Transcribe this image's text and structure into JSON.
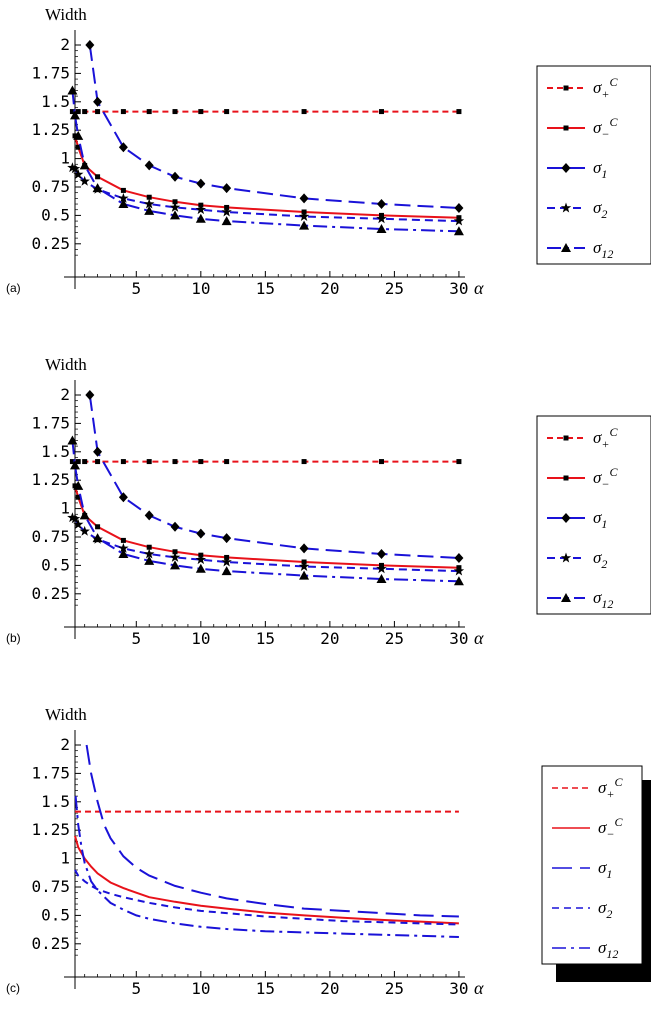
{
  "chart_data": [
    {
      "panel_label": "(a)",
      "type": "line",
      "ylabel": "Width",
      "xlabel": "α",
      "xlim": [
        0,
        30
      ],
      "ylim": [
        0.1,
        2.0
      ],
      "xticks": [
        "5",
        "10",
        "15",
        "20",
        "25",
        "30"
      ],
      "yticks": [
        "2",
        "1.75",
        "1.5",
        "1.25",
        "1",
        "0.75",
        "0.5",
        "0.25"
      ],
      "legend_position": "right",
      "markers": true,
      "series": [
        {
          "label": "σ+^C",
          "color": "#e8121a",
          "dash": "6,4",
          "marker": "square",
          "x": [
            0.05,
            0.5,
            1,
            2,
            4,
            6,
            8,
            10,
            12,
            18,
            24,
            30
          ],
          "y": [
            1.414,
            1.414,
            1.414,
            1.414,
            1.414,
            1.414,
            1.414,
            1.414,
            1.414,
            1.414,
            1.414,
            1.414
          ]
        },
        {
          "label": "σ−^C",
          "color": "#e8121a",
          "dash": "",
          "marker": "square",
          "x": [
            0.25,
            0.5,
            1,
            2,
            4,
            6,
            8,
            10,
            12,
            18,
            24,
            30
          ],
          "y": [
            1.2,
            1.1,
            0.94,
            0.84,
            0.72,
            0.66,
            0.62,
            0.59,
            0.57,
            0.53,
            0.5,
            0.48
          ]
        },
        {
          "label": "σ1",
          "color": "#1a12d8",
          "dash": "16,7",
          "marker": "diamond",
          "x": [
            1.4,
            2,
            4,
            6,
            8,
            10,
            12,
            18,
            24,
            30
          ],
          "y": [
            2.0,
            1.5,
            1.1,
            0.94,
            0.84,
            0.78,
            0.74,
            0.65,
            0.6,
            0.565
          ]
        },
        {
          "label": "σ2",
          "color": "#1a12d8",
          "dash": "8,5",
          "marker": "star",
          "x": [
            0.05,
            0.25,
            0.5,
            1,
            2,
            4,
            6,
            8,
            10,
            12,
            18,
            24,
            30
          ],
          "y": [
            0.92,
            0.91,
            0.86,
            0.8,
            0.73,
            0.65,
            0.6,
            0.57,
            0.55,
            0.53,
            0.49,
            0.47,
            0.45
          ]
        },
        {
          "label": "σ12",
          "color": "#1a12d8",
          "dash": "14,5,3,5",
          "marker": "triangle",
          "x": [
            0.05,
            0.25,
            0.5,
            1,
            2,
            4,
            6,
            8,
            10,
            12,
            18,
            24,
            30
          ],
          "y": [
            1.6,
            1.38,
            1.2,
            0.94,
            0.74,
            0.6,
            0.54,
            0.5,
            0.47,
            0.45,
            0.41,
            0.38,
            0.36
          ]
        }
      ]
    },
    {
      "panel_label": "(b)",
      "type": "line",
      "ylabel": "Width",
      "xlabel": "α",
      "xlim": [
        0,
        30
      ],
      "ylim": [
        0.1,
        2.0
      ],
      "xticks": [
        "5",
        "10",
        "15",
        "20",
        "25",
        "30"
      ],
      "yticks": [
        "2",
        "1.75",
        "1.5",
        "1.25",
        "1",
        "0.75",
        "0.5",
        "0.25"
      ],
      "legend_position": "right",
      "markers": true,
      "series": [
        {
          "label": "σ+^C",
          "color": "#e8121a",
          "dash": "6,4",
          "marker": "square",
          "x": [
            0.05,
            0.5,
            1,
            2,
            4,
            6,
            8,
            10,
            12,
            18,
            24,
            30
          ],
          "y": [
            1.414,
            1.414,
            1.414,
            1.414,
            1.414,
            1.414,
            1.414,
            1.414,
            1.414,
            1.414,
            1.414,
            1.414
          ]
        },
        {
          "label": "σ−^C",
          "color": "#e8121a",
          "dash": "",
          "marker": "square",
          "x": [
            0.25,
            0.5,
            1,
            2,
            4,
            6,
            8,
            10,
            12,
            18,
            24,
            30
          ],
          "y": [
            1.2,
            1.1,
            0.94,
            0.84,
            0.72,
            0.66,
            0.62,
            0.59,
            0.57,
            0.53,
            0.5,
            0.48
          ]
        },
        {
          "label": "σ1",
          "color": "#1a12d8",
          "dash": "16,7",
          "marker": "diamond",
          "x": [
            1.4,
            2,
            4,
            6,
            8,
            10,
            12,
            18,
            24,
            30
          ],
          "y": [
            2.0,
            1.5,
            1.1,
            0.94,
            0.84,
            0.78,
            0.74,
            0.65,
            0.6,
            0.565
          ]
        },
        {
          "label": "σ2",
          "color": "#1a12d8",
          "dash": "8,5",
          "marker": "star",
          "x": [
            0.05,
            0.25,
            0.5,
            1,
            2,
            4,
            6,
            8,
            10,
            12,
            18,
            24,
            30
          ],
          "y": [
            0.92,
            0.91,
            0.86,
            0.8,
            0.73,
            0.65,
            0.6,
            0.57,
            0.55,
            0.53,
            0.49,
            0.47,
            0.45
          ]
        },
        {
          "label": "σ12",
          "color": "#1a12d8",
          "dash": "14,5,3,5",
          "marker": "triangle",
          "x": [
            0.05,
            0.25,
            0.5,
            1,
            2,
            4,
            6,
            8,
            10,
            12,
            18,
            24,
            30
          ],
          "y": [
            1.6,
            1.38,
            1.2,
            0.94,
            0.74,
            0.6,
            0.54,
            0.5,
            0.47,
            0.45,
            0.41,
            0.38,
            0.36
          ]
        }
      ]
    },
    {
      "panel_label": "(c)",
      "type": "line",
      "ylabel": "Width",
      "xlabel": "α",
      "xlim": [
        0,
        30
      ],
      "ylim": [
        0.1,
        2.0
      ],
      "xticks": [
        "5",
        "10",
        "15",
        "20",
        "25",
        "30"
      ],
      "yticks": [
        "2",
        "1.75",
        "1.5",
        "1.25",
        "1",
        "0.75",
        "0.5",
        "0.25"
      ],
      "legend_position": "right",
      "markers": false,
      "series": [
        {
          "label": "σ+^C",
          "color": "#e8121a",
          "dash": "6,4",
          "x": [
            0.25,
            30
          ],
          "y": [
            1.414,
            1.414
          ]
        },
        {
          "label": "σ−^C",
          "color": "#e8121a",
          "dash": "",
          "x": [
            0.25,
            0.5,
            1,
            1.5,
            2,
            3,
            4,
            5,
            6,
            8,
            10,
            12,
            15,
            18,
            21,
            24,
            27,
            30
          ],
          "y": [
            1.2,
            1.1,
            1.0,
            0.93,
            0.87,
            0.79,
            0.74,
            0.7,
            0.66,
            0.62,
            0.585,
            0.56,
            0.525,
            0.5,
            0.48,
            0.46,
            0.445,
            0.43
          ]
        },
        {
          "label": "σ1",
          "color": "#1a12d8",
          "dash": "20,8",
          "x": [
            1.15,
            1.5,
            2,
            2.5,
            3,
            4,
            5,
            6,
            8,
            10,
            12,
            15,
            18,
            21,
            24,
            27,
            30
          ],
          "y": [
            2.0,
            1.75,
            1.5,
            1.3,
            1.18,
            1.02,
            0.92,
            0.85,
            0.76,
            0.7,
            0.65,
            0.6,
            0.56,
            0.54,
            0.52,
            0.5,
            0.49
          ]
        },
        {
          "label": "σ2",
          "color": "#1a12d8",
          "dash": "7,5",
          "x": [
            0.25,
            0.5,
            1,
            1.5,
            2,
            3,
            4,
            6,
            8,
            10,
            12,
            15,
            18,
            21,
            24,
            27,
            30
          ],
          "y": [
            0.9,
            0.85,
            0.8,
            0.76,
            0.73,
            0.69,
            0.66,
            0.61,
            0.57,
            0.54,
            0.52,
            0.49,
            0.47,
            0.45,
            0.44,
            0.43,
            0.42
          ]
        },
        {
          "label": "σ12",
          "color": "#1a12d8",
          "dash": "14,5,3,5",
          "x": [
            0.3,
            0.5,
            0.75,
            1,
            1.5,
            2,
            3,
            4,
            5,
            6,
            8,
            10,
            12,
            15,
            18,
            21,
            24,
            27,
            30
          ],
          "y": [
            1.55,
            1.3,
            1.1,
            0.96,
            0.8,
            0.72,
            0.61,
            0.55,
            0.5,
            0.47,
            0.43,
            0.4,
            0.38,
            0.36,
            0.35,
            0.34,
            0.33,
            0.32,
            0.31
          ]
        }
      ]
    }
  ]
}
